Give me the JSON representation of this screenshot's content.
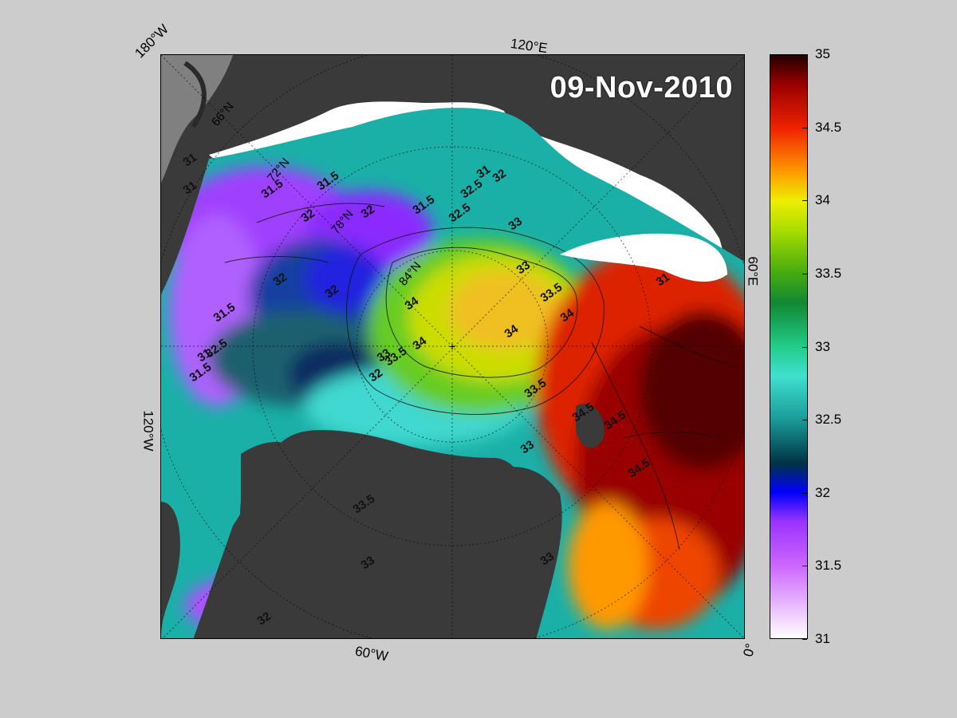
{
  "map": {
    "date": "09-Nov-2010",
    "colors": {
      "land": "#3a3a3a",
      "ice": "#ffffff",
      "shelf": "#808080"
    },
    "lon_labels": {
      "lon_180w": "180°W",
      "lon_120e": "120°E",
      "lon_60e": "60°E",
      "lon_120w": "120°W",
      "lon_60w": "60°W",
      "lon_0": "0°"
    },
    "lat_labels": {
      "lat_66n": "66°N",
      "lat_72n": "72°N",
      "lat_78n": "78°N",
      "lat_84n": "84°N"
    },
    "contour_labels": [
      "31",
      "31",
      "31.5",
      "31.5",
      "32",
      "32.5",
      "32",
      "32",
      "31.5",
      "32",
      "31.5",
      "31",
      "32.5",
      "32",
      "33",
      "31",
      "33.5",
      "34",
      "33",
      "34",
      "34",
      "34.5",
      "33.5",
      "33",
      "33.5",
      "33",
      "34.5",
      "34",
      "34.5",
      "33",
      "32.5",
      "32",
      "31.5",
      "31",
      "33.5",
      "33",
      "32"
    ]
  },
  "colorbar": {
    "min": 31,
    "max": 35,
    "ticks": [
      "35",
      "34.5",
      "34",
      "33.5",
      "33",
      "32.5",
      "32",
      "31.5",
      "31"
    ],
    "stops": [
      {
        "value": 31.0,
        "color": "#ffffff"
      },
      {
        "value": 31.5,
        "color": "#cc66ff"
      },
      {
        "value": 31.8,
        "color": "#9933ff"
      },
      {
        "value": 32.0,
        "color": "#0000ff"
      },
      {
        "value": 32.2,
        "color": "#003344"
      },
      {
        "value": 32.5,
        "color": "#1a9a9a"
      },
      {
        "value": 32.8,
        "color": "#40e0d0"
      },
      {
        "value": 33.0,
        "color": "#22cc88"
      },
      {
        "value": 33.3,
        "color": "#118833"
      },
      {
        "value": 33.5,
        "color": "#44aa11"
      },
      {
        "value": 33.8,
        "color": "#aadd00"
      },
      {
        "value": 34.0,
        "color": "#eeee00"
      },
      {
        "value": 34.2,
        "color": "#ff9900"
      },
      {
        "value": 34.5,
        "color": "#ee2200"
      },
      {
        "value": 34.8,
        "color": "#990000"
      },
      {
        "value": 35.0,
        "color": "#220000"
      }
    ]
  }
}
